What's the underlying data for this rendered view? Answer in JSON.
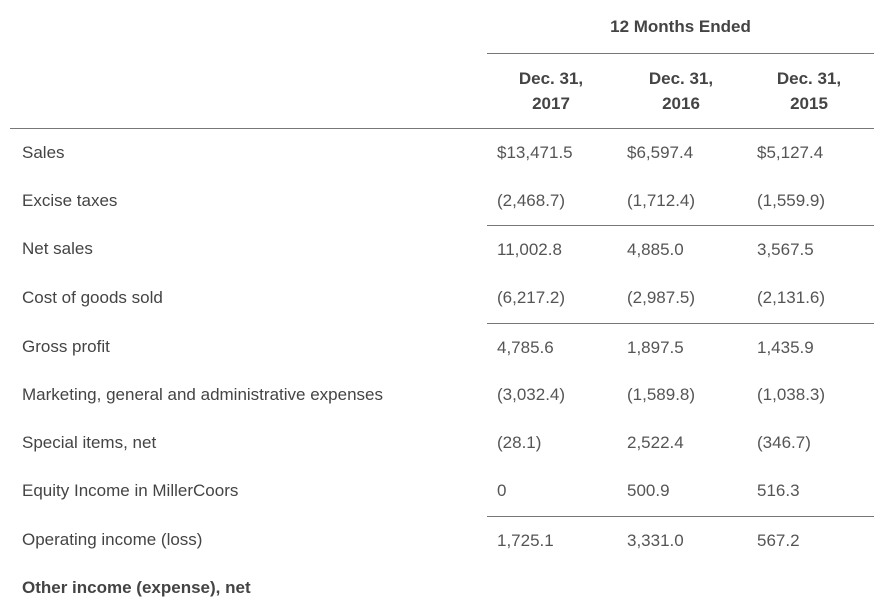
{
  "header": {
    "period": "12 Months Ended",
    "columns": [
      {
        "line1": "Dec. 31,",
        "line2": "2017"
      },
      {
        "line1": "Dec. 31,",
        "line2": "2016"
      },
      {
        "line1": "Dec. 31,",
        "line2": "2015"
      }
    ]
  },
  "rows": [
    {
      "label": "Sales",
      "values": [
        "$13,471.5",
        "$6,597.4",
        "$5,127.4"
      ]
    },
    {
      "label": "Excise taxes",
      "values": [
        "(2,468.7)",
        "(1,712.4)",
        "(1,559.9)"
      ]
    },
    {
      "label": "Net sales",
      "values": [
        "11,002.8",
        "4,885.0",
        "3,567.5"
      ]
    },
    {
      "label": "Cost of goods sold",
      "values": [
        "(6,217.2)",
        "(2,987.5)",
        "(2,131.6)"
      ]
    },
    {
      "label": "Gross profit",
      "values": [
        "4,785.6",
        "1,897.5",
        "1,435.9"
      ]
    },
    {
      "label": "Marketing, general and administrative expenses",
      "values": [
        "(3,032.4)",
        "(1,589.8)",
        "(1,038.3)"
      ]
    },
    {
      "label": "Special items, net",
      "values": [
        "(28.1)",
        "2,522.4",
        "(346.7)"
      ]
    },
    {
      "label": "Equity Income in MillerCoors",
      "values": [
        "0",
        "500.9",
        "516.3"
      ]
    },
    {
      "label": "Operating income (loss)",
      "values": [
        "1,725.1",
        "3,331.0",
        "567.2"
      ]
    },
    {
      "label": "Other income (expense), net",
      "values": []
    }
  ]
}
